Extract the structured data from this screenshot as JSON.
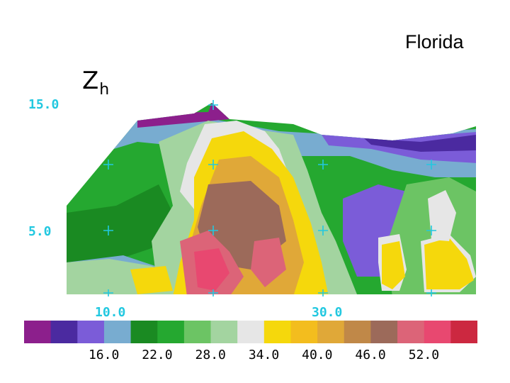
{
  "title": "Florida",
  "field": {
    "symbol": "Z",
    "subscript": "h"
  },
  "chart_data": {
    "type": "heatmap",
    "title": "Florida",
    "field_label": "Zh",
    "y_ticks": [
      "15.0",
      "5.0"
    ],
    "x_ticks": [
      "10.0",
      "30.0"
    ],
    "colorbar": {
      "colors": [
        "#8c1f8c",
        "#4b2aa0",
        "#7b5cd8",
        "#78acd0",
        "#1a8a22",
        "#25a830",
        "#6cc464",
        "#a3d4a0",
        "#e6e6e6",
        "#f5d80c",
        "#f3bd1e",
        "#e0a838",
        "#c08848",
        "#9c6a5a",
        "#dc6478",
        "#e84870",
        "#cc2840"
      ],
      "tick_labels": [
        "16.0",
        "22.0",
        "28.0",
        "34.0",
        "40.0",
        "46.0",
        "52.0"
      ]
    }
  }
}
